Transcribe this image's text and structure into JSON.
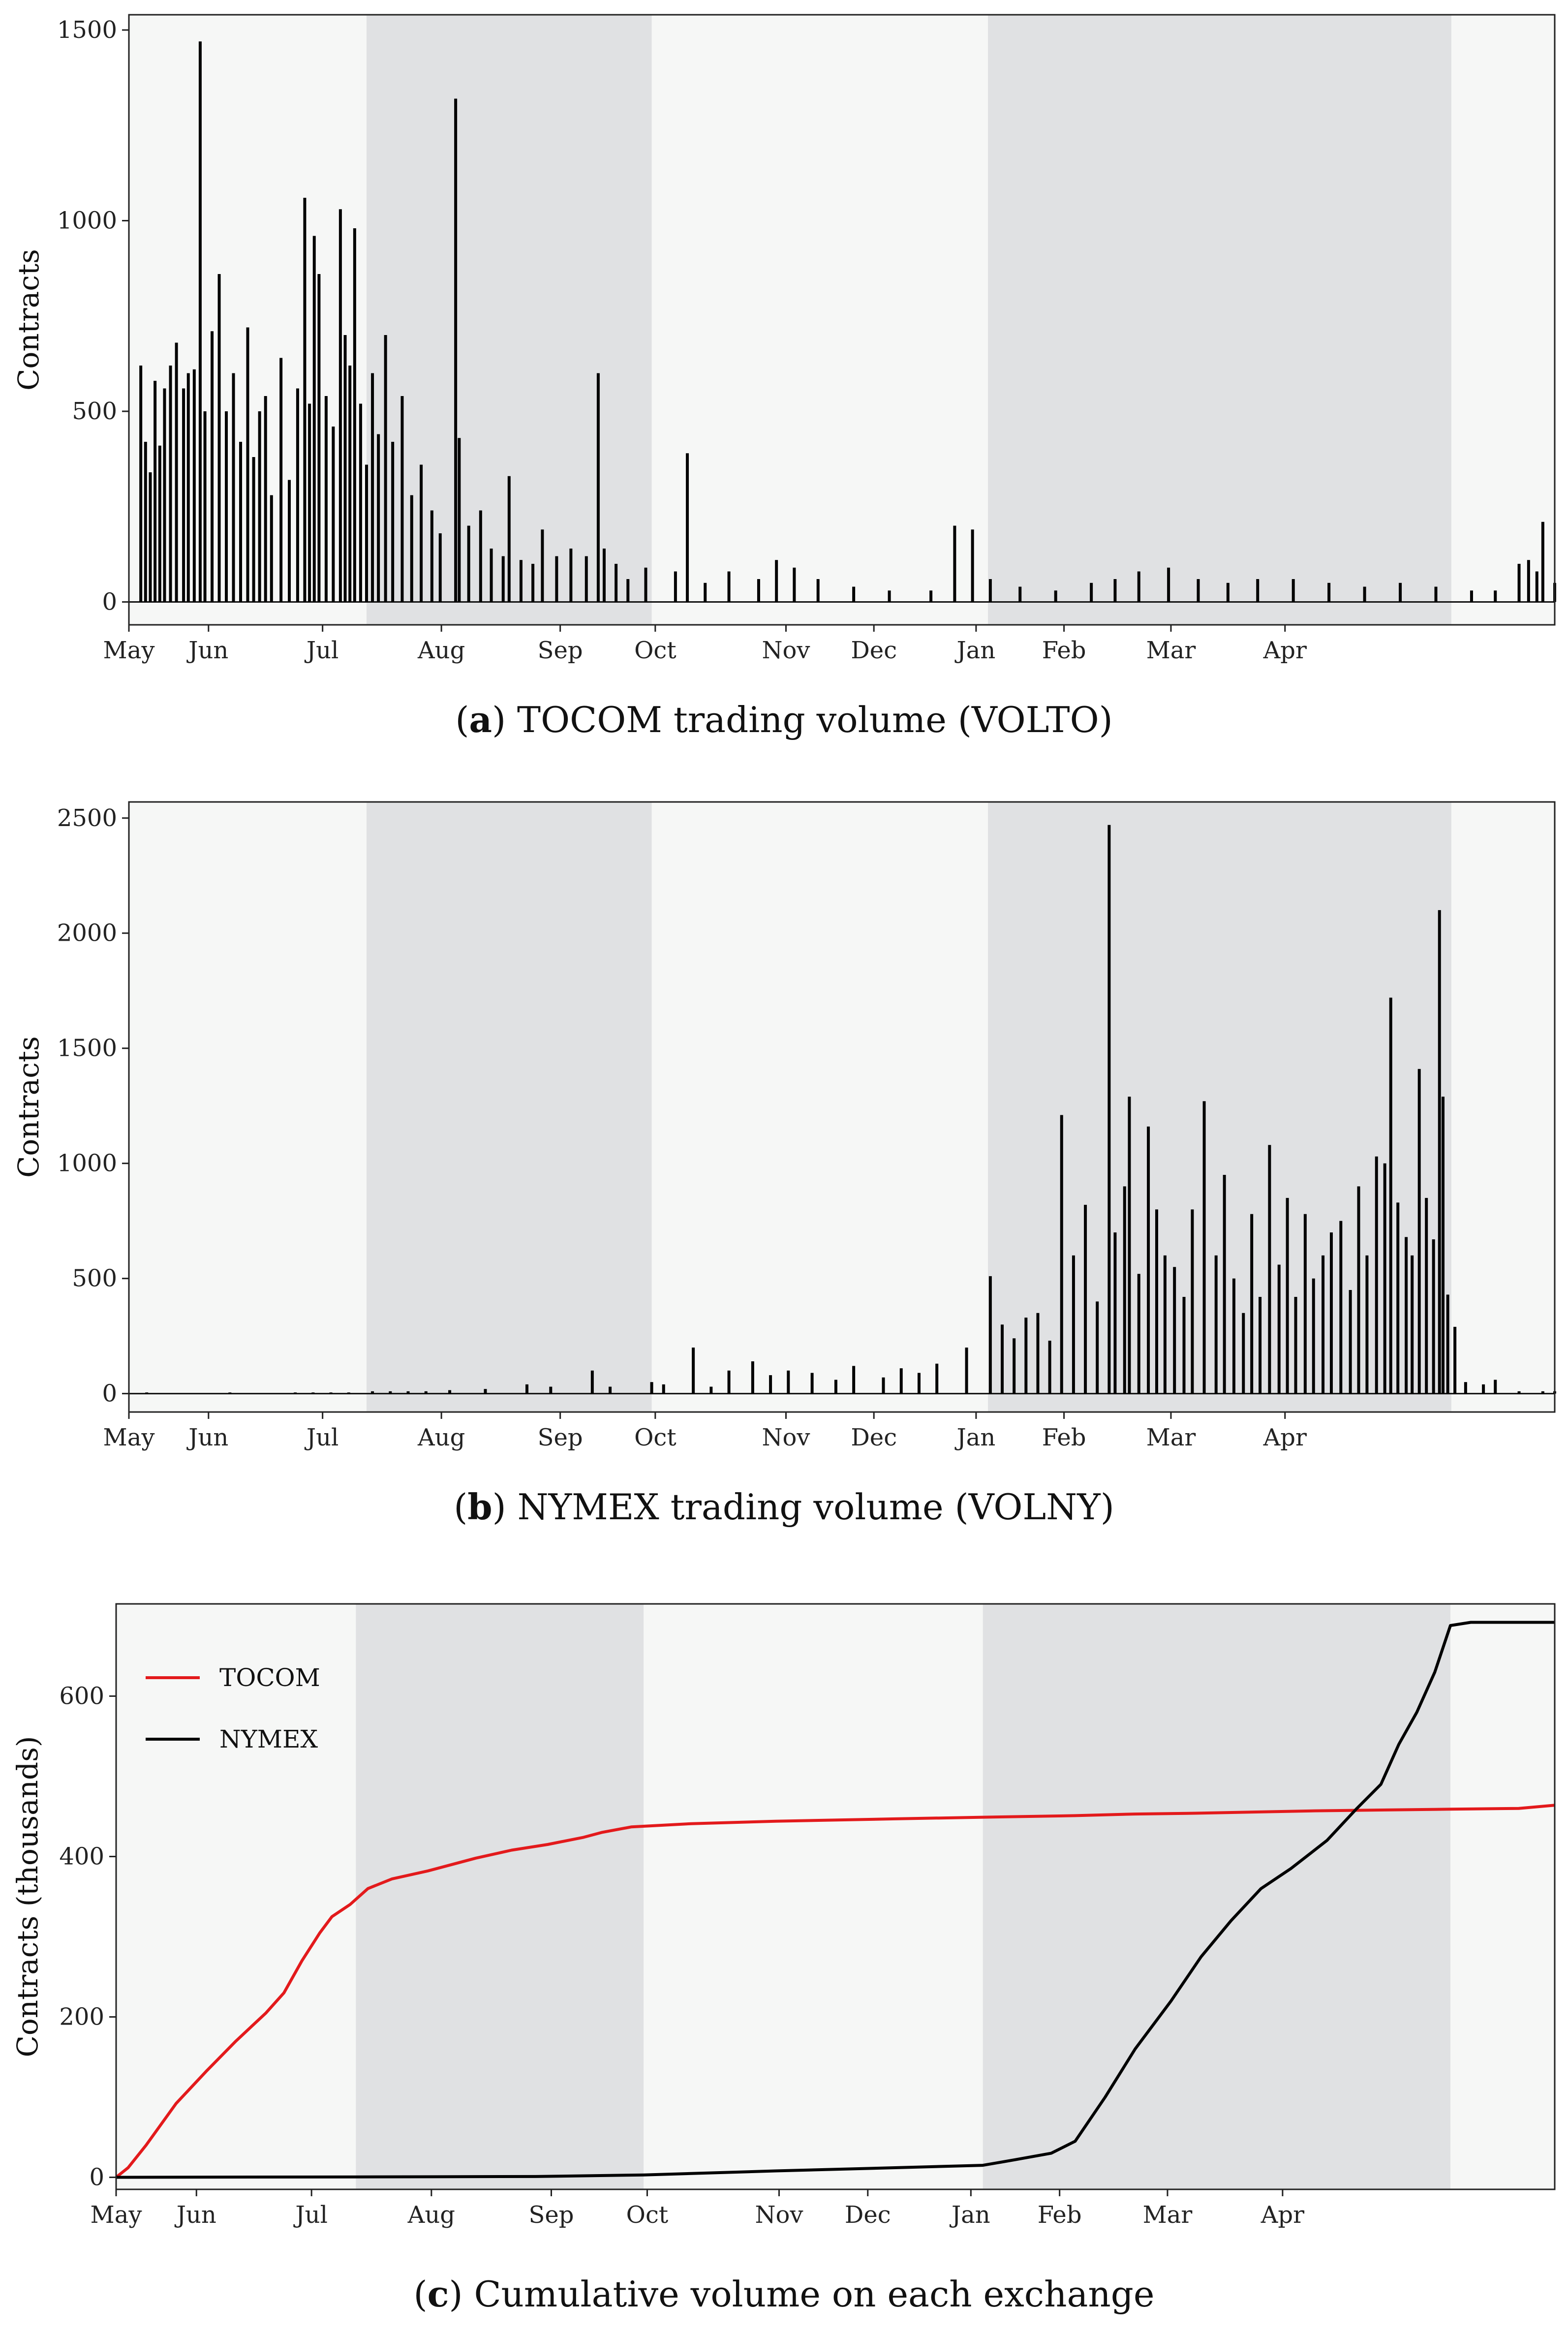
{
  "chart_data": [
    {
      "type": "bar",
      "caption_letter": "a",
      "caption_text": "TOCOM trading volume (VOLTO)",
      "ylabel": "Contracts",
      "ylim": [
        -60,
        1540
      ],
      "yticks": [
        0,
        500,
        1000,
        1500
      ],
      "x_domain_months": [
        0,
        12
      ],
      "xticks": [
        {
          "label": "May",
          "t": 0.0
        },
        {
          "label": "Jun",
          "t": 0.67
        },
        {
          "label": "Jul",
          "t": 1.63
        },
        {
          "label": "Aug",
          "t": 2.63
        },
        {
          "label": "Sep",
          "t": 3.63
        },
        {
          "label": "Oct",
          "t": 4.43
        },
        {
          "label": "Nov",
          "t": 5.53
        },
        {
          "label": "Dec",
          "t": 6.27
        },
        {
          "label": "Jan",
          "t": 7.13
        },
        {
          "label": "Feb",
          "t": 7.87
        },
        {
          "label": "Mar",
          "t": 8.77
        },
        {
          "label": "Apr",
          "t": 9.73
        }
      ],
      "shaded_periods": [
        [
          2.0,
          4.4
        ],
        [
          7.23,
          11.13
        ]
      ],
      "bars": [
        [
          0.1,
          620
        ],
        [
          0.14,
          420
        ],
        [
          0.18,
          340
        ],
        [
          0.22,
          580
        ],
        [
          0.26,
          410
        ],
        [
          0.3,
          560
        ],
        [
          0.35,
          620
        ],
        [
          0.4,
          680
        ],
        [
          0.46,
          560
        ],
        [
          0.5,
          600
        ],
        [
          0.55,
          610
        ],
        [
          0.6,
          1470
        ],
        [
          0.64,
          500
        ],
        [
          0.7,
          710
        ],
        [
          0.76,
          860
        ],
        [
          0.82,
          500
        ],
        [
          0.88,
          600
        ],
        [
          0.94,
          420
        ],
        [
          1.0,
          720
        ],
        [
          1.05,
          380
        ],
        [
          1.1,
          500
        ],
        [
          1.15,
          540
        ],
        [
          1.2,
          280
        ],
        [
          1.28,
          640
        ],
        [
          1.35,
          320
        ],
        [
          1.42,
          560
        ],
        [
          1.48,
          1060
        ],
        [
          1.52,
          520
        ],
        [
          1.56,
          960
        ],
        [
          1.6,
          860
        ],
        [
          1.66,
          540
        ],
        [
          1.72,
          460
        ],
        [
          1.78,
          1030
        ],
        [
          1.82,
          700
        ],
        [
          1.86,
          620
        ],
        [
          1.9,
          980
        ],
        [
          1.95,
          520
        ],
        [
          2.0,
          360
        ],
        [
          2.05,
          600
        ],
        [
          2.1,
          440
        ],
        [
          2.16,
          700
        ],
        [
          2.22,
          420
        ],
        [
          2.3,
          540
        ],
        [
          2.38,
          280
        ],
        [
          2.46,
          360
        ],
        [
          2.55,
          240
        ],
        [
          2.62,
          180
        ],
        [
          2.75,
          1320
        ],
        [
          2.78,
          430
        ],
        [
          2.86,
          200
        ],
        [
          2.96,
          240
        ],
        [
          3.05,
          140
        ],
        [
          3.15,
          120
        ],
        [
          3.2,
          330
        ],
        [
          3.3,
          110
        ],
        [
          3.4,
          100
        ],
        [
          3.48,
          190
        ],
        [
          3.6,
          120
        ],
        [
          3.72,
          140
        ],
        [
          3.85,
          120
        ],
        [
          3.95,
          600
        ],
        [
          4.0,
          140
        ],
        [
          4.1,
          100
        ],
        [
          4.2,
          60
        ],
        [
          4.35,
          90
        ],
        [
          4.6,
          80
        ],
        [
          4.7,
          390
        ],
        [
          4.85,
          50
        ],
        [
          5.05,
          80
        ],
        [
          5.3,
          60
        ],
        [
          5.45,
          110
        ],
        [
          5.6,
          90
        ],
        [
          5.8,
          60
        ],
        [
          6.1,
          40
        ],
        [
          6.4,
          30
        ],
        [
          6.75,
          30
        ],
        [
          6.95,
          200
        ],
        [
          7.1,
          190
        ],
        [
          7.25,
          60
        ],
        [
          7.5,
          40
        ],
        [
          7.8,
          30
        ],
        [
          8.1,
          50
        ],
        [
          8.3,
          60
        ],
        [
          8.5,
          80
        ],
        [
          8.75,
          90
        ],
        [
          9.0,
          60
        ],
        [
          9.25,
          50
        ],
        [
          9.5,
          60
        ],
        [
          9.8,
          60
        ],
        [
          10.1,
          50
        ],
        [
          10.4,
          40
        ],
        [
          10.7,
          50
        ],
        [
          11.0,
          40
        ],
        [
          11.3,
          30
        ],
        [
          11.5,
          30
        ],
        [
          11.7,
          100
        ],
        [
          11.78,
          110
        ],
        [
          11.85,
          80
        ],
        [
          11.9,
          210
        ],
        [
          12.0,
          50
        ]
      ]
    },
    {
      "type": "bar",
      "caption_letter": "b",
      "caption_text": "NYMEX trading volume (VOLNY)",
      "ylabel": "Contracts",
      "ylim": [
        -80,
        2570
      ],
      "yticks": [
        0,
        500,
        1000,
        1500,
        2000,
        2500
      ],
      "x_domain_months": [
        0,
        12
      ],
      "xticks": [
        {
          "label": "May",
          "t": 0.0
        },
        {
          "label": "Jun",
          "t": 0.67
        },
        {
          "label": "Jul",
          "t": 1.63
        },
        {
          "label": "Aug",
          "t": 2.63
        },
        {
          "label": "Sep",
          "t": 3.63
        },
        {
          "label": "Oct",
          "t": 4.43
        },
        {
          "label": "Nov",
          "t": 5.53
        },
        {
          "label": "Dec",
          "t": 6.27
        },
        {
          "label": "Jan",
          "t": 7.13
        },
        {
          "label": "Feb",
          "t": 7.87
        },
        {
          "label": "Mar",
          "t": 8.77
        },
        {
          "label": "Apr",
          "t": 9.73
        }
      ],
      "shaded_periods": [
        [
          2.0,
          4.4
        ],
        [
          7.23,
          11.13
        ]
      ],
      "bars": [
        [
          0.15,
          5
        ],
        [
          0.85,
          5
        ],
        [
          1.4,
          5
        ],
        [
          1.55,
          5
        ],
        [
          1.7,
          5
        ],
        [
          1.85,
          5
        ],
        [
          2.05,
          10
        ],
        [
          2.2,
          10
        ],
        [
          2.35,
          10
        ],
        [
          2.5,
          10
        ],
        [
          2.7,
          15
        ],
        [
          3.0,
          20
        ],
        [
          3.35,
          40
        ],
        [
          3.55,
          30
        ],
        [
          3.9,
          100
        ],
        [
          4.05,
          30
        ],
        [
          4.4,
          50
        ],
        [
          4.5,
          40
        ],
        [
          4.75,
          200
        ],
        [
          4.9,
          30
        ],
        [
          5.05,
          100
        ],
        [
          5.25,
          140
        ],
        [
          5.4,
          80
        ],
        [
          5.55,
          100
        ],
        [
          5.75,
          90
        ],
        [
          5.95,
          60
        ],
        [
          6.1,
          120
        ],
        [
          6.35,
          70
        ],
        [
          6.5,
          110
        ],
        [
          6.65,
          90
        ],
        [
          6.8,
          130
        ],
        [
          7.05,
          200
        ],
        [
          7.25,
          510
        ],
        [
          7.35,
          300
        ],
        [
          7.45,
          240
        ],
        [
          7.55,
          330
        ],
        [
          7.65,
          350
        ],
        [
          7.75,
          230
        ],
        [
          7.85,
          1210
        ],
        [
          7.95,
          600
        ],
        [
          8.05,
          820
        ],
        [
          8.15,
          400
        ],
        [
          8.25,
          2470
        ],
        [
          8.3,
          700
        ],
        [
          8.38,
          900
        ],
        [
          8.42,
          1290
        ],
        [
          8.5,
          520
        ],
        [
          8.58,
          1160
        ],
        [
          8.65,
          800
        ],
        [
          8.72,
          600
        ],
        [
          8.8,
          550
        ],
        [
          8.88,
          420
        ],
        [
          8.95,
          800
        ],
        [
          9.05,
          1270
        ],
        [
          9.15,
          600
        ],
        [
          9.22,
          950
        ],
        [
          9.3,
          500
        ],
        [
          9.38,
          350
        ],
        [
          9.45,
          780
        ],
        [
          9.52,
          420
        ],
        [
          9.6,
          1080
        ],
        [
          9.68,
          560
        ],
        [
          9.75,
          850
        ],
        [
          9.82,
          420
        ],
        [
          9.9,
          780
        ],
        [
          9.97,
          500
        ],
        [
          10.05,
          600
        ],
        [
          10.12,
          700
        ],
        [
          10.2,
          750
        ],
        [
          10.28,
          450
        ],
        [
          10.35,
          900
        ],
        [
          10.42,
          600
        ],
        [
          10.5,
          1030
        ],
        [
          10.57,
          1000
        ],
        [
          10.62,
          1720
        ],
        [
          10.68,
          830
        ],
        [
          10.75,
          680
        ],
        [
          10.8,
          600
        ],
        [
          10.86,
          1410
        ],
        [
          10.92,
          850
        ],
        [
          10.98,
          670
        ],
        [
          11.03,
          2100
        ],
        [
          11.06,
          1290
        ],
        [
          11.1,
          430
        ],
        [
          11.16,
          290
        ],
        [
          11.25,
          50
        ],
        [
          11.4,
          40
        ],
        [
          11.5,
          60
        ],
        [
          11.7,
          10
        ],
        [
          11.9,
          10
        ],
        [
          12.0,
          10
        ]
      ]
    },
    {
      "type": "line",
      "caption_letter": "c",
      "caption_text": "Cumulative volume on each exchange",
      "ylabel": "Contracts (thousands)",
      "ylim": [
        -15,
        715
      ],
      "yticks": [
        0,
        200,
        400,
        600
      ],
      "x_domain_months": [
        0,
        12
      ],
      "xticks": [
        {
          "label": "May",
          "t": 0.0
        },
        {
          "label": "Jun",
          "t": 0.67
        },
        {
          "label": "Jul",
          "t": 1.63
        },
        {
          "label": "Aug",
          "t": 2.63
        },
        {
          "label": "Sep",
          "t": 3.63
        },
        {
          "label": "Oct",
          "t": 4.43
        },
        {
          "label": "Nov",
          "t": 5.53
        },
        {
          "label": "Dec",
          "t": 6.27
        },
        {
          "label": "Jan",
          "t": 7.13
        },
        {
          "label": "Feb",
          "t": 7.87
        },
        {
          "label": "Mar",
          "t": 8.77
        },
        {
          "label": "Apr",
          "t": 9.73
        }
      ],
      "shaded_periods": [
        [
          2.0,
          4.4
        ],
        [
          7.23,
          11.13
        ]
      ],
      "legend_position": "top-left",
      "series": [
        {
          "name": "TOCOM",
          "color": "#e31a1c",
          "points": [
            [
              0,
              0
            ],
            [
              0.1,
              12
            ],
            [
              0.25,
              40
            ],
            [
              0.5,
              92
            ],
            [
              0.75,
              132
            ],
            [
              1.0,
              170
            ],
            [
              1.25,
              205
            ],
            [
              1.4,
              230
            ],
            [
              1.55,
              270
            ],
            [
              1.7,
              305
            ],
            [
              1.8,
              325
            ],
            [
              1.95,
              340
            ],
            [
              2.1,
              360
            ],
            [
              2.3,
              372
            ],
            [
              2.6,
              382
            ],
            [
              2.8,
              390
            ],
            [
              3.0,
              398
            ],
            [
              3.3,
              408
            ],
            [
              3.6,
              415
            ],
            [
              3.9,
              424
            ],
            [
              4.05,
              430
            ],
            [
              4.3,
              437
            ],
            [
              4.8,
              441
            ],
            [
              5.5,
              444
            ],
            [
              6.5,
              447
            ],
            [
              7.23,
              449
            ],
            [
              8.0,
              451
            ],
            [
              8.5,
              453
            ],
            [
              9.0,
              454
            ],
            [
              10.0,
              457
            ],
            [
              11.13,
              459
            ],
            [
              11.7,
              460
            ],
            [
              12.0,
              464
            ]
          ]
        },
        {
          "name": "NYMEX",
          "color": "#000000",
          "points": [
            [
              0,
              0
            ],
            [
              2.0,
              0.5
            ],
            [
              3.5,
              1
            ],
            [
              4.4,
              3
            ],
            [
              5.5,
              8
            ],
            [
              6.5,
              12
            ],
            [
              7.23,
              15
            ],
            [
              7.5,
              22
            ],
            [
              7.8,
              30
            ],
            [
              8.0,
              45
            ],
            [
              8.25,
              100
            ],
            [
              8.5,
              160
            ],
            [
              8.8,
              220
            ],
            [
              9.05,
              275
            ],
            [
              9.3,
              320
            ],
            [
              9.55,
              360
            ],
            [
              9.8,
              385
            ],
            [
              10.1,
              420
            ],
            [
              10.35,
              460
            ],
            [
              10.55,
              490
            ],
            [
              10.7,
              540
            ],
            [
              10.85,
              580
            ],
            [
              11.0,
              630
            ],
            [
              11.13,
              688
            ],
            [
              11.3,
              692
            ],
            [
              12.0,
              692
            ]
          ]
        }
      ]
    }
  ]
}
